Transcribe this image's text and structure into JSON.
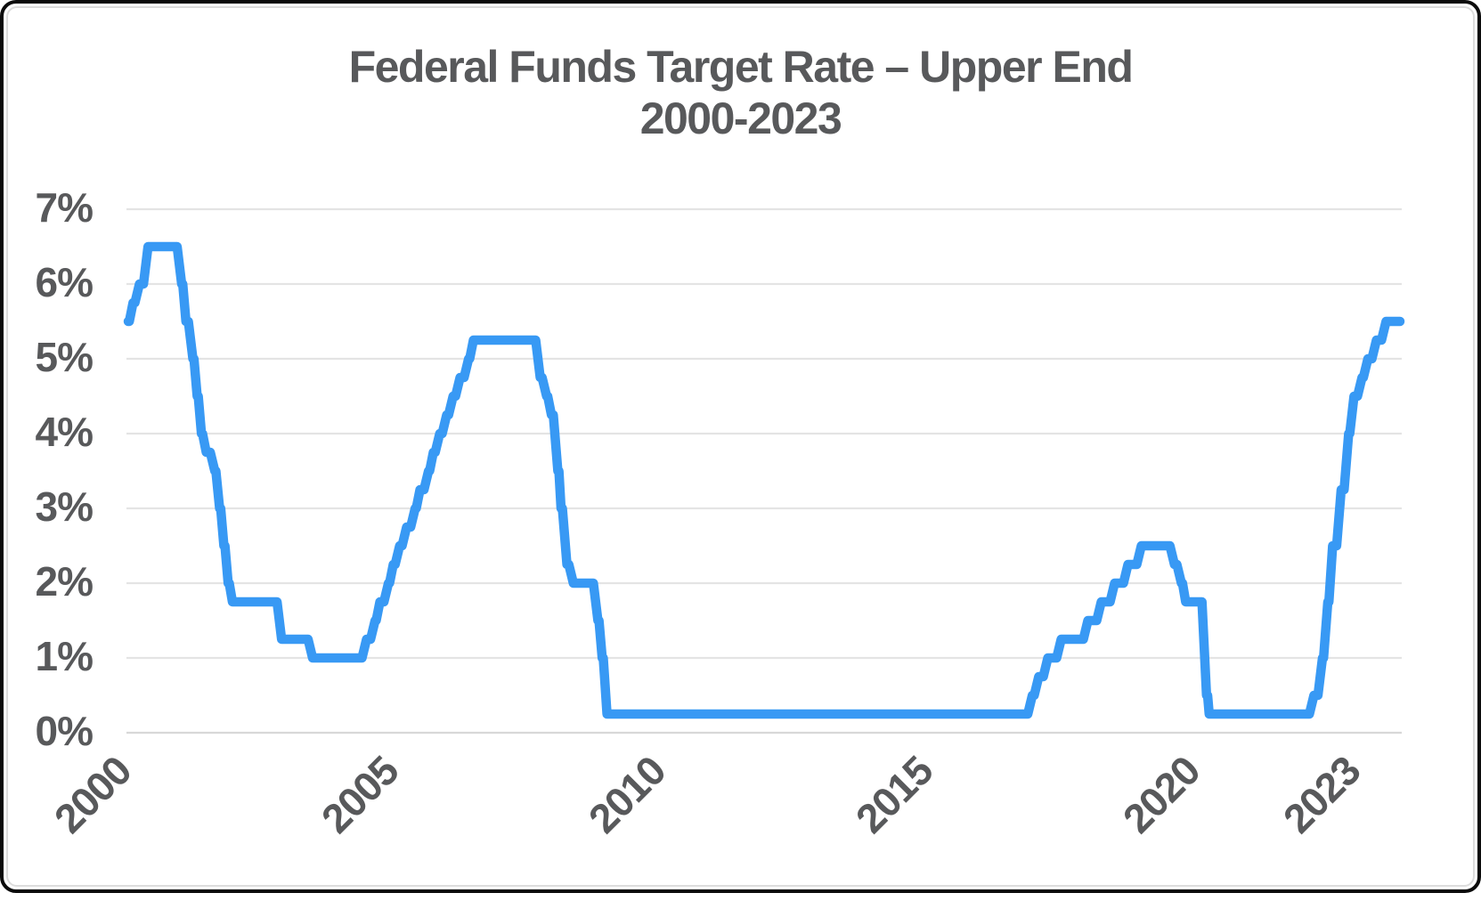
{
  "title": {
    "line1": "Federal Funds Target Rate – Upper End",
    "line2": "2000-2023"
  },
  "colors": {
    "line": "#3899f4",
    "grid": "#e4e4e4",
    "zero_grid": "#d8d8d8",
    "text": "#58595b",
    "frame_border": "#0b0b0b",
    "inner_keyline": "#dcdcdc",
    "background": "#ffffff"
  },
  "chart_data": {
    "type": "line",
    "title": "Federal Funds Target Rate – Upper End",
    "subtitle": "2000-2023",
    "xlabel": "",
    "ylabel": "",
    "x_range": [
      2000,
      2023.8
    ],
    "y_range": [
      0,
      7
    ],
    "grid": "horizontal-only",
    "legend": "none",
    "x_ticks": [
      {
        "label": "2000",
        "value": 2000
      },
      {
        "label": "2005",
        "value": 2005
      },
      {
        "label": "2010",
        "value": 2010
      },
      {
        "label": "2015",
        "value": 2015
      },
      {
        "label": "2020",
        "value": 2020
      },
      {
        "label": "2023",
        "value": 2023
      }
    ],
    "y_ticks": [
      {
        "label": "0%",
        "value": 0
      },
      {
        "label": "1%",
        "value": 1
      },
      {
        "label": "2%",
        "value": 2
      },
      {
        "label": "3%",
        "value": 3
      },
      {
        "label": "4%",
        "value": 4
      },
      {
        "label": "5%",
        "value": 5
      },
      {
        "label": "6%",
        "value": 6
      },
      {
        "label": "7%",
        "value": 7
      }
    ],
    "series": [
      {
        "name": "Federal Funds Target Rate (Upper End, %)",
        "step_points": [
          [
            2000.0,
            5.5
          ],
          [
            2000.09,
            5.75
          ],
          [
            2000.21,
            6.0
          ],
          [
            2000.37,
            6.5
          ],
          [
            2001.0,
            6.0
          ],
          [
            2001.08,
            5.5
          ],
          [
            2001.21,
            5.0
          ],
          [
            2001.29,
            4.5
          ],
          [
            2001.37,
            4.0
          ],
          [
            2001.46,
            3.75
          ],
          [
            2001.62,
            3.5
          ],
          [
            2001.71,
            3.0
          ],
          [
            2001.79,
            2.5
          ],
          [
            2001.87,
            2.0
          ],
          [
            2001.95,
            1.75
          ],
          [
            2002.87,
            1.25
          ],
          [
            2003.45,
            1.0
          ],
          [
            2004.46,
            1.25
          ],
          [
            2004.62,
            1.5
          ],
          [
            2004.71,
            1.75
          ],
          [
            2004.87,
            2.0
          ],
          [
            2004.96,
            2.25
          ],
          [
            2005.08,
            2.5
          ],
          [
            2005.21,
            2.75
          ],
          [
            2005.37,
            3.0
          ],
          [
            2005.46,
            3.25
          ],
          [
            2005.62,
            3.5
          ],
          [
            2005.71,
            3.75
          ],
          [
            2005.83,
            4.0
          ],
          [
            2005.96,
            4.25
          ],
          [
            2006.08,
            4.5
          ],
          [
            2006.21,
            4.75
          ],
          [
            2006.37,
            5.0
          ],
          [
            2006.46,
            5.25
          ],
          [
            2007.71,
            4.75
          ],
          [
            2007.83,
            4.5
          ],
          [
            2007.92,
            4.25
          ],
          [
            2008.04,
            3.5
          ],
          [
            2008.1,
            3.0
          ],
          [
            2008.21,
            2.25
          ],
          [
            2008.33,
            2.0
          ],
          [
            2008.79,
            1.5
          ],
          [
            2008.87,
            1.0
          ],
          [
            2008.96,
            0.25
          ],
          [
            2016.92,
            0.5
          ],
          [
            2017.04,
            0.75
          ],
          [
            2017.21,
            1.0
          ],
          [
            2017.46,
            1.25
          ],
          [
            2017.96,
            1.5
          ],
          [
            2018.21,
            1.75
          ],
          [
            2018.46,
            2.0
          ],
          [
            2018.71,
            2.25
          ],
          [
            2018.96,
            2.5
          ],
          [
            2019.58,
            2.25
          ],
          [
            2019.71,
            2.0
          ],
          [
            2019.79,
            1.75
          ],
          [
            2020.18,
            0.5
          ],
          [
            2020.23,
            0.25
          ],
          [
            2022.19,
            0.5
          ],
          [
            2022.35,
            1.0
          ],
          [
            2022.45,
            1.75
          ],
          [
            2022.54,
            2.5
          ],
          [
            2022.7,
            3.25
          ],
          [
            2022.84,
            4.0
          ],
          [
            2022.94,
            4.5
          ],
          [
            2023.09,
            4.75
          ],
          [
            2023.2,
            5.0
          ],
          [
            2023.36,
            5.25
          ],
          [
            2023.54,
            5.5
          ],
          [
            2023.8,
            5.5
          ]
        ]
      }
    ]
  }
}
